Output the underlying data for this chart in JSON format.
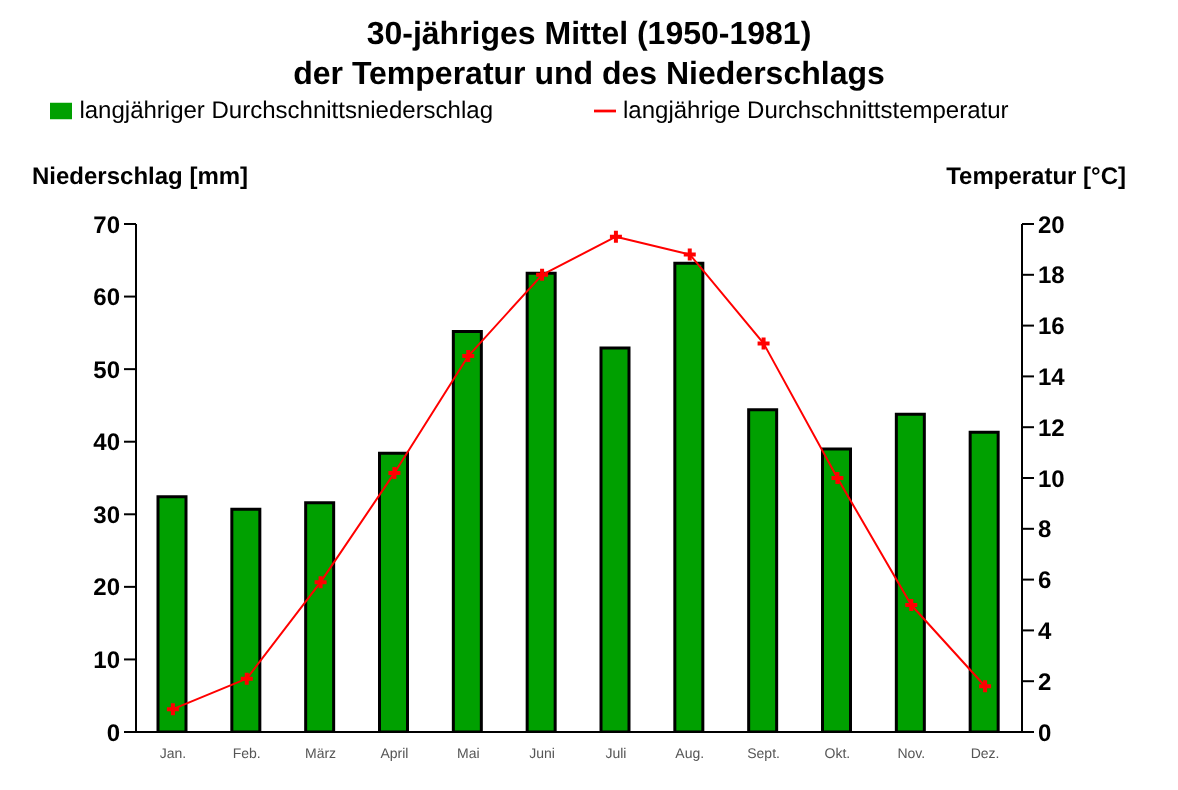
{
  "chart_data": {
    "type": "bar",
    "title": "30-jähriges Mittel (1950-1981)",
    "subtitle": "der Temperatur und des Niederschlags",
    "ylabel": "Niederschlag [mm]",
    "y2label": "Temperatur [°C]",
    "categories": [
      "Jan.",
      "Feb.",
      "März",
      "April",
      "Mai",
      "Juni",
      "Juli",
      "Aug.",
      "Sept.",
      "Okt.",
      "Nov.",
      "Dez."
    ],
    "series": [
      {
        "name": "langjähriger Durchschnittsniederschlag",
        "color": "#00a000",
        "values": [
          32.4,
          30.7,
          31.6,
          38.4,
          55.2,
          63.2,
          52.9,
          64.6,
          44.4,
          39.0,
          43.8,
          41.3
        ]
      },
      {
        "name": "langjährige Durchschnittstemperatur",
        "type": "line",
        "axis": "y2",
        "color": "#ff0000",
        "marker": "cross",
        "values": [
          0.9,
          2.1,
          5.9,
          10.2,
          14.8,
          18.0,
          19.5,
          18.8,
          15.3,
          10.0,
          5.0,
          1.8
        ]
      }
    ],
    "ylim": [
      0,
      70
    ],
    "yticks": [
      0,
      10,
      20,
      30,
      40,
      50,
      60,
      70
    ],
    "y2lim": [
      0,
      20
    ],
    "y2ticks": [
      0,
      2,
      4,
      6,
      8,
      10,
      12,
      14,
      16,
      18,
      20
    ],
    "legend": "top"
  }
}
